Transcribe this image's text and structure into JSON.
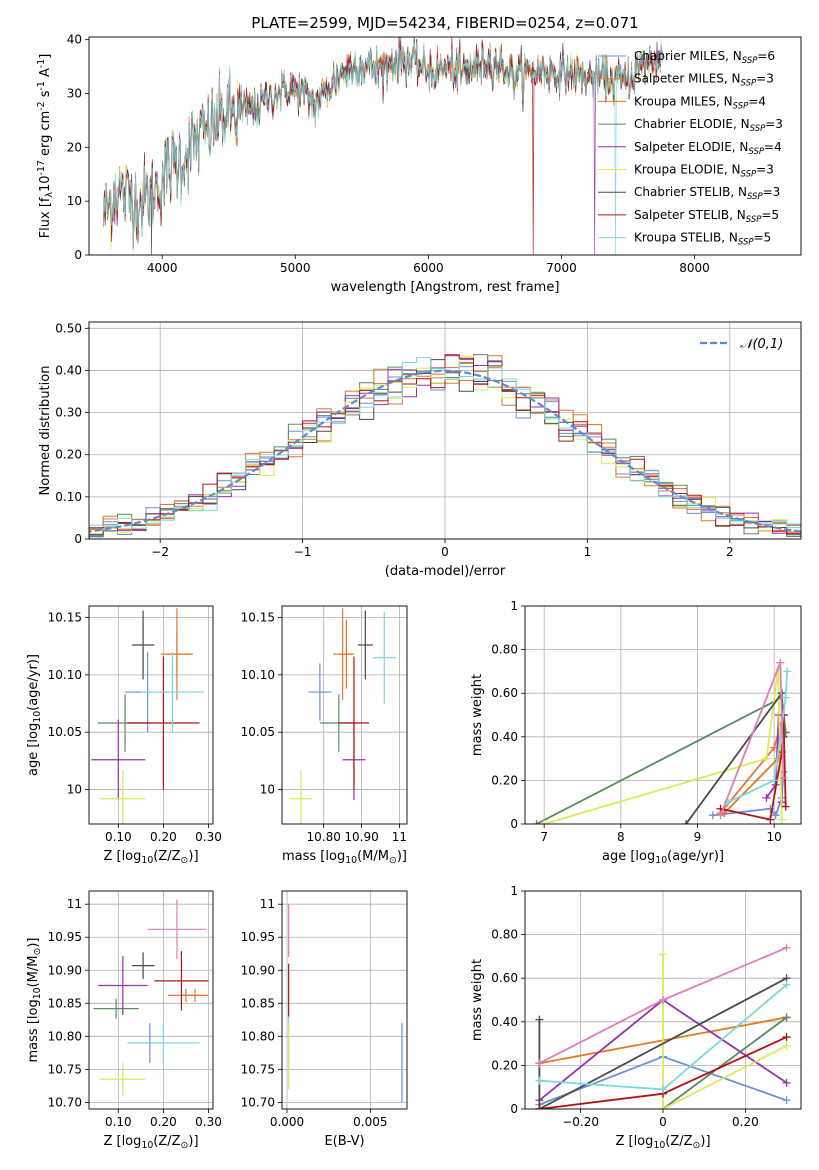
{
  "figure_title": "PLATE=2599, MJD=54234, FIBERID=0254, z=0.071",
  "models": [
    {
      "name": "Chabrier MILES",
      "n": "6",
      "color": "#6f8fd8"
    },
    {
      "name": "Salpeter MILES",
      "n": "3",
      "color": "#e8743b"
    },
    {
      "name": "Kroupa MILES",
      "n": "4",
      "color": "#e07a22"
    },
    {
      "name": "Chabrier ELODIE",
      "n": "3",
      "color": "#5a8a5f"
    },
    {
      "name": "Salpeter ELODIE",
      "n": "4",
      "color": "#9b30b0"
    },
    {
      "name": "Kroupa ELODIE",
      "n": "3",
      "color": "#d8ec5a"
    },
    {
      "name": "Chabrier STELIB",
      "n": "3",
      "color": "#4a4a4a"
    },
    {
      "name": "Salpeter STELIB",
      "n": "5",
      "color": "#b01515"
    },
    {
      "name": "Kroupa STELIB",
      "n": "5",
      "color": "#7dd8dc"
    }
  ],
  "chart_data": [
    {
      "id": "spectrum",
      "type": "line",
      "xlabel": "wavelength [Angstrom, rest frame]",
      "ylabel": "Flux [f$_\\lambda$10$^{-17}$ erg cm$^{-2}$ s$^{-1}$ A$^{-1}$]",
      "xlim": [
        3450,
        8800
      ],
      "ylim": [
        0,
        40.5
      ],
      "xticks": [
        4000,
        5000,
        6000,
        7000,
        8000
      ],
      "yticks": [
        0,
        10,
        20,
        30,
        40
      ],
      "spectrum_trend": {
        "x": [
          3550,
          3650,
          3750,
          3850,
          3950,
          4050,
          4150,
          4250,
          4350,
          4450,
          4550,
          4650,
          4750,
          4850,
          4950,
          5050,
          5150,
          5250,
          5350,
          5450,
          5550,
          5650,
          5750,
          5850,
          5950,
          6050,
          6150,
          6250,
          6350,
          6450,
          6550,
          6650,
          6750,
          6850,
          6950,
          7050,
          7150,
          7250,
          7350,
          7450,
          7550,
          7650,
          7750
        ],
        "y": [
          7,
          12,
          11,
          10,
          12,
          16,
          18,
          21,
          23,
          26,
          26,
          27,
          28,
          30,
          31,
          30,
          28,
          31,
          34,
          35,
          35,
          35,
          36,
          36,
          35,
          34,
          35,
          34,
          35,
          36,
          35,
          33,
          34,
          34,
          34,
          34,
          33,
          33,
          33,
          32,
          34,
          36,
          37
        ]
      },
      "dips": [
        {
          "x": 3615,
          "y": 1
        },
        {
          "x": 3920,
          "y": 0
        },
        {
          "x": 6790,
          "y": 0
        },
        {
          "x": 7405,
          "y": 0
        },
        {
          "x": 7250,
          "y": 0
        }
      ]
    },
    {
      "id": "residuals",
      "type": "histogram",
      "xlabel": "(data-model)/error",
      "ylabel": "Normed distribution",
      "xlim": [
        -2.5,
        2.5
      ],
      "ylim": [
        0,
        0.515
      ],
      "xticks": [
        -2,
        -1,
        0,
        1,
        2
      ],
      "yticks": [
        0.0,
        0.1,
        0.2,
        0.3,
        0.4,
        0.5
      ],
      "bin_width": 0.1,
      "normal_label": "$\\mathcal{N}(0,1)$",
      "normal_color": "#5b8cd6"
    },
    {
      "id": "age_vs_Z",
      "type": "scatter",
      "xlabel": "Z [log$_{10}$(Z/Z$_\\odot$)]",
      "ylabel": "age  [log$_{10}$(age/yr)]",
      "xlim": [
        0.035,
        0.31
      ],
      "ylim": [
        9.97,
        10.16
      ],
      "xticks": [
        0.1,
        0.2,
        0.3
      ],
      "yticks": [
        10.0,
        10.05,
        10.1,
        10.15
      ],
      "points": [
        {
          "model": 0,
          "x": 0.165,
          "y": 10.085,
          "xerr": 0.05,
          "yerr": 0.035
        },
        {
          "model": 1,
          "x": 0.23,
          "y": 10.118,
          "xerr": 0.035,
          "yerr": 0.04
        },
        {
          "model": 2,
          "x": 0.23,
          "y": 10.118,
          "xerr": 0.035,
          "yerr": 0.02
        },
        {
          "model": 3,
          "x": 0.115,
          "y": 10.058,
          "xerr": 0.06,
          "yerr": 0.025
        },
        {
          "model": 4,
          "x": 0.1,
          "y": 10.026,
          "xerr": 0.06,
          "yerr": 0.035
        },
        {
          "model": 5,
          "x": 0.11,
          "y": 9.992,
          "xerr": 0.05,
          "yerr": 0.025
        },
        {
          "model": 6,
          "x": 0.155,
          "y": 10.126,
          "xerr": 0.025,
          "yerr": 0.03
        },
        {
          "model": 7,
          "x": 0.2,
          "y": 10.058,
          "xerr": 0.08,
          "yerr": 0.058
        },
        {
          "model": 8,
          "x": 0.22,
          "y": 10.085,
          "xerr": 0.07,
          "yerr": 0.035
        }
      ]
    },
    {
      "id": "age_vs_mass",
      "type": "scatter",
      "xlabel": "mass [log$_{10}$(M/M$_\\odot$)]",
      "ylabel": "",
      "xlim": [
        10.69,
        11.02
      ],
      "ylim": [
        9.97,
        10.16
      ],
      "xticks": [
        10.8,
        10.9,
        11.0
      ],
      "yticks": [
        10.0,
        10.05,
        10.1,
        10.15
      ],
      "points": [
        {
          "model": 0,
          "x": 10.79,
          "y": 10.085,
          "xerr": 0.03,
          "yerr": 0.025
        },
        {
          "model": 1,
          "x": 10.85,
          "y": 10.118,
          "xerr": 0.025,
          "yerr": 0.04
        },
        {
          "model": 2,
          "x": 10.86,
          "y": 10.118,
          "xerr": 0.02,
          "yerr": 0.03
        },
        {
          "model": 3,
          "x": 10.84,
          "y": 10.058,
          "xerr": 0.05,
          "yerr": 0.025
        },
        {
          "model": 4,
          "x": 10.88,
          "y": 10.026,
          "xerr": 0.03,
          "yerr": 0.035
        },
        {
          "model": 5,
          "x": 10.74,
          "y": 9.992,
          "xerr": 0.03,
          "yerr": 0.025
        },
        {
          "model": 6,
          "x": 10.91,
          "y": 10.126,
          "xerr": 0.02,
          "yerr": 0.03
        },
        {
          "model": 7,
          "x": 10.88,
          "y": 10.058,
          "xerr": 0.04,
          "yerr": 0.058
        },
        {
          "model": 8,
          "x": 10.96,
          "y": 10.115,
          "xerr": 0.03,
          "yerr": 0.04
        }
      ]
    },
    {
      "id": "weight_vs_age",
      "type": "line",
      "xlabel": "age  [log$_{10}$(age/yr)]",
      "ylabel": "mass weight",
      "xlim": [
        6.75,
        10.35
      ],
      "ylim": [
        0,
        1.0
      ],
      "xticks": [
        7,
        8,
        9,
        10
      ],
      "yticks": [
        0.0,
        0.2,
        0.4,
        0.6,
        0.8,
        1.0
      ],
      "series": [
        {
          "model": 0,
          "x": [
            9.2,
            9.95,
            10.02,
            10.1,
            10.12,
            10.13
          ],
          "y": [
            0.04,
            0.07,
            0.04,
            0.12,
            0.24,
            0.5
          ]
        },
        {
          "model": 1,
          "x": [
            9.3,
            10.0,
            10.12
          ],
          "y": [
            0.05,
            0.35,
            0.5
          ]
        },
        {
          "model": 2,
          "x": [
            9.35,
            10.05,
            10.15
          ],
          "y": [
            0.05,
            0.3,
            0.42
          ]
        },
        {
          "model": 3,
          "x": [
            6.9,
            10.1,
            10.15
          ],
          "y": [
            0.0,
            0.58,
            0.42
          ]
        },
        {
          "model": 4,
          "x": [
            9.9,
            10.02,
            10.06,
            10.1
          ],
          "y": [
            0.12,
            0.18,
            0.5,
            0.1
          ]
        },
        {
          "model": 5,
          "x": [
            7.0,
            9.9,
            10.05,
            10.1
          ],
          "y": [
            0.0,
            0.3,
            0.71,
            0.02
          ]
        },
        {
          "model": 6,
          "x": [
            8.85,
            10.1,
            10.12
          ],
          "y": [
            0.0,
            0.6,
            0.4
          ]
        },
        {
          "model": 7,
          "x": [
            9.3,
            9.95,
            10.1,
            10.12,
            10.15
          ],
          "y": [
            0.07,
            0.02,
            0.33,
            0.5,
            0.08
          ]
        },
        {
          "model": 8,
          "x": [
            9.4,
            10.0,
            10.15,
            10.17
          ],
          "y": [
            0.1,
            0.2,
            0.58,
            0.7
          ]
        }
      ],
      "extra_series": {
        "color": "#e27db7",
        "x": [
          9.3,
          10.08,
          10.12
        ],
        "y": [
          0.04,
          0.74,
          0.21
        ]
      }
    },
    {
      "id": "mass_vs_Z",
      "type": "scatter",
      "xlabel": "Z [log$_{10}$(Z/Z$_\\odot$)]",
      "ylabel": "mass [log$_{10}$(M/M$_\\odot$)]",
      "xlim": [
        0.035,
        0.31
      ],
      "ylim": [
        10.69,
        11.02
      ],
      "xticks": [
        0.1,
        0.2,
        0.3
      ],
      "yticks": [
        10.7,
        10.75,
        10.8,
        10.85,
        10.9,
        10.95,
        11.0
      ],
      "points": [
        {
          "model": 0,
          "x": 0.17,
          "y": 10.79,
          "xerr": 0.04,
          "yerr": 0.03
        },
        {
          "model": 1,
          "x": 0.25,
          "y": 10.862,
          "xerr": 0.04,
          "yerr": 0.01
        },
        {
          "model": 2,
          "x": 0.27,
          "y": 10.862,
          "xerr": 0.03,
          "yerr": 0.01
        },
        {
          "model": 3,
          "x": 0.095,
          "y": 10.842,
          "xerr": 0.05,
          "yerr": 0.015
        },
        {
          "model": 4,
          "x": 0.11,
          "y": 10.877,
          "xerr": 0.055,
          "yerr": 0.045
        },
        {
          "model": 5,
          "x": 0.11,
          "y": 10.735,
          "xerr": 0.05,
          "yerr": 0.025
        },
        {
          "model": 6,
          "x": 0.155,
          "y": 10.907,
          "xerr": 0.025,
          "yerr": 0.02
        },
        {
          "model": 7,
          "x": 0.24,
          "y": 10.884,
          "xerr": 0.06,
          "yerr": 0.045
        },
        {
          "model": 8,
          "x": 0.2,
          "y": 10.79,
          "xerr": 0.08,
          "yerr": 0.03
        }
      ],
      "extra_points": [
        {
          "color": "#e27db7",
          "x": 0.23,
          "y": 10.962,
          "xerr": 0.065,
          "yerr": 0.045
        }
      ]
    },
    {
      "id": "mass_vs_ebv",
      "type": "scatter",
      "xlabel": "E(B-V)",
      "ylabel": "",
      "xlim": [
        -0.0003,
        0.0072
      ],
      "ylim": [
        10.69,
        11.02
      ],
      "xticks": [
        0.0,
        0.005
      ],
      "xtick_labels": [
        "0.000",
        "0.005"
      ],
      "yticks": [
        10.7,
        10.75,
        10.8,
        10.85,
        10.9,
        10.95,
        11.0
      ],
      "points": [
        {
          "model": 0,
          "x": 0.0069,
          "y": 10.76,
          "xerr": 0,
          "yerr": 0.06
        },
        {
          "model": 7,
          "x": 0.0001,
          "y": 10.87,
          "xerr": 0,
          "yerr": 0.04
        },
        {
          "model": 8,
          "x": 0.0001,
          "y": 10.79,
          "xerr": 0,
          "yerr": 0.04
        },
        {
          "model": 5,
          "x": 0.0001,
          "y": 10.77,
          "xerr": 0,
          "yerr": 0.05
        }
      ],
      "extra_points": [
        {
          "color": "#e27db7",
          "x": 0.0001,
          "y": 10.96,
          "xerr": 0,
          "yerr": 0.04
        }
      ]
    },
    {
      "id": "weight_vs_Z",
      "type": "line",
      "xlabel": "Z [log$_{10}$(Z/Z$_\\odot$)]",
      "ylabel": "mass weight",
      "xlim": [
        -0.335,
        0.335
      ],
      "ylim": [
        0,
        1.0
      ],
      "xticks": [
        -0.2,
        0.0,
        0.2
      ],
      "yticks": [
        0.0,
        0.2,
        0.4,
        0.6,
        0.8,
        1.0
      ],
      "series": [
        {
          "model": 0,
          "x": [
            -0.3,
            0.0,
            0.3
          ],
          "y": [
            0.02,
            0.24,
            0.04
          ]
        },
        {
          "model": 2,
          "x": [
            -0.3,
            0.3
          ],
          "y": [
            0.21,
            0.42
          ]
        },
        {
          "model": 3,
          "x": [
            0.0,
            0.3
          ],
          "y": [
            0.0,
            0.42
          ]
        },
        {
          "model": 4,
          "x": [
            -0.3,
            0.0,
            0.3
          ],
          "y": [
            0.04,
            0.5,
            0.12
          ]
        },
        {
          "model": 5,
          "x": [
            0.0,
            0.0,
            0.3
          ],
          "y": [
            0.71,
            0.0,
            0.29
          ]
        },
        {
          "model": 6,
          "x": [
            -0.3,
            -0.3,
            0.3
          ],
          "y": [
            0.41,
            0.0,
            0.6
          ]
        },
        {
          "model": 7,
          "x": [
            -0.3,
            0.0,
            0.3
          ],
          "y": [
            0.0,
            0.07,
            0.33
          ]
        },
        {
          "model": 8,
          "x": [
            -0.3,
            0.0,
            0.3
          ],
          "y": [
            0.13,
            0.09,
            0.57
          ]
        }
      ],
      "extra_series": {
        "color": "#e27db7",
        "x": [
          -0.3,
          0.0,
          0.3
        ],
        "y": [
          0.21,
          0.5,
          0.74
        ]
      }
    }
  ]
}
